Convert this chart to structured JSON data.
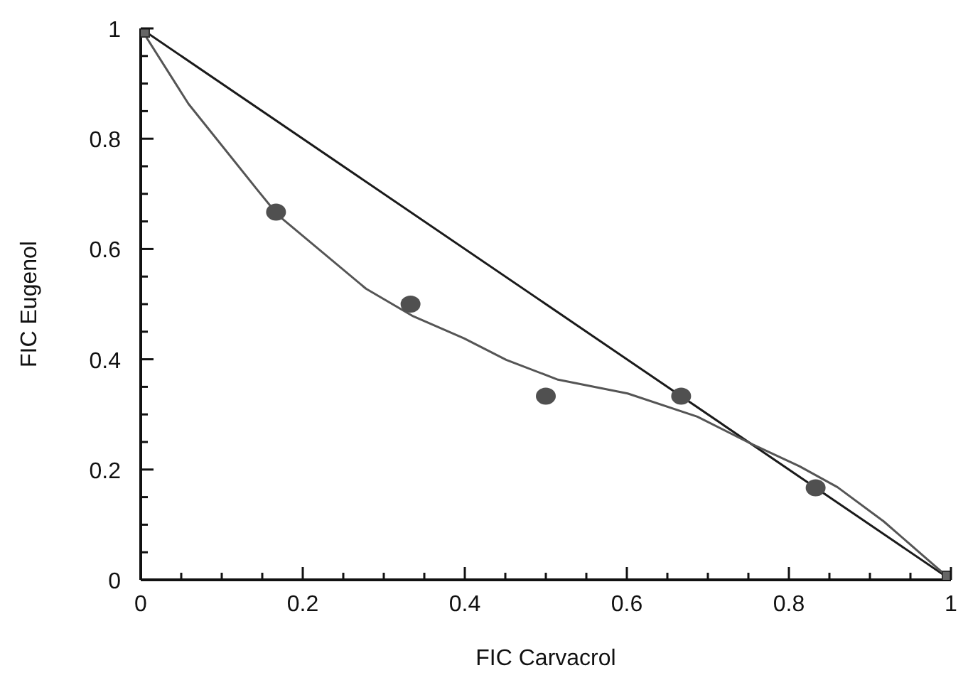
{
  "chart_data": {
    "type": "line",
    "xlabel": "FIC Carvacrol",
    "ylabel": "FIC Eugenol",
    "xlim": [
      0,
      1
    ],
    "ylim": [
      0,
      1
    ],
    "xticks": [
      0,
      {
        "value": 0.05,
        "label": null
      },
      {
        "value": 0.1,
        "label": null
      },
      {
        "value": 0.15,
        "label": null
      },
      0.2,
      {
        "value": 0.25,
        "label": null
      },
      {
        "value": 0.3,
        "label": null
      },
      {
        "value": 0.35,
        "label": null
      },
      0.4,
      {
        "value": 0.45,
        "label": null
      },
      {
        "value": 0.5,
        "label": null
      },
      {
        "value": 0.55,
        "label": null
      },
      0.6,
      {
        "value": 0.65,
        "label": null
      },
      {
        "value": 0.7,
        "label": null
      },
      {
        "value": 0.75,
        "label": null
      },
      0.8,
      {
        "value": 0.85,
        "label": null
      },
      {
        "value": 0.9,
        "label": null
      },
      {
        "value": 0.95,
        "label": null
      },
      1
    ],
    "yticks": [
      0,
      {
        "value": 0.05,
        "label": null
      },
      {
        "value": 0.1,
        "label": null
      },
      {
        "value": 0.15,
        "label": null
      },
      0.2,
      {
        "value": 0.25,
        "label": null
      },
      {
        "value": 0.3,
        "label": null
      },
      {
        "value": 0.35,
        "label": null
      },
      0.4,
      {
        "value": 0.45,
        "label": null
      },
      {
        "value": 0.5,
        "label": null
      },
      {
        "value": 0.55,
        "label": null
      },
      0.6,
      {
        "value": 0.65,
        "label": null
      },
      {
        "value": 0.7,
        "label": null
      },
      {
        "value": 0.75,
        "label": null
      },
      0.8,
      {
        "value": 0.85,
        "label": null
      },
      {
        "value": 0.9,
        "label": null
      },
      {
        "value": 0.95,
        "label": null
      },
      1
    ],
    "grid": false,
    "series": [
      {
        "color": "#1a1a1a",
        "marker": "none",
        "x": [
          0,
          1
        ],
        "values": [
          1,
          0
        ]
      },
      {
        "color": "#555555",
        "marker": "none",
        "x": [
          0,
          0.059,
          0.143,
          0.169,
          0.278,
          0.335,
          0.399,
          0.451,
          0.515,
          0.601,
          0.687,
          0.756,
          0.813,
          0.86,
          0.917,
          0.964,
          1
        ],
        "values": [
          1,
          0.863,
          0.709,
          0.662,
          0.528,
          0.479,
          0.438,
          0.399,
          0.363,
          0.338,
          0.296,
          0.245,
          0.206,
          0.168,
          0.106,
          0.046,
          0
        ]
      },
      {
        "type": "scatter",
        "color": "#505050",
        "marker": "circle",
        "x": [
          0.167,
          0.333,
          0.5,
          0.667,
          0.833
        ],
        "values": [
          0.667,
          0.5,
          0.333,
          0.333,
          0.167
        ]
      },
      {
        "type": "scatter",
        "color": "#666666",
        "marker": "square",
        "x": [
          0,
          1
        ],
        "values": [
          1,
          0
        ]
      }
    ]
  }
}
